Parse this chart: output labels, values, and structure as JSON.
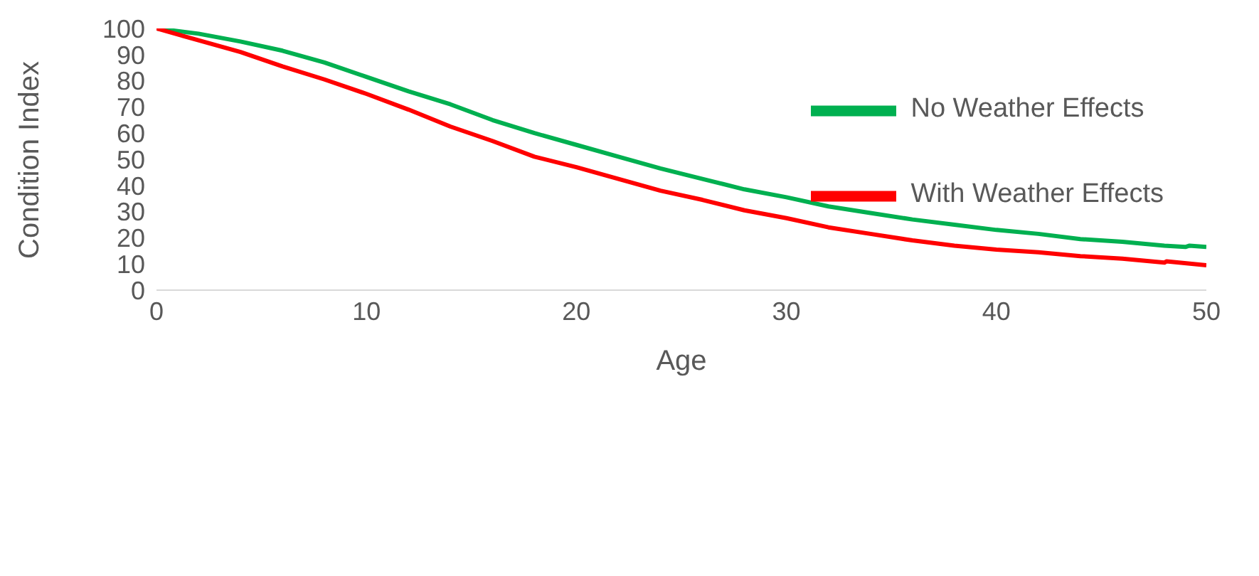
{
  "chart_data": {
    "type": "line",
    "xlabel": "Age",
    "ylabel": "Condition Index",
    "xlim": [
      0,
      50
    ],
    "xticks": [
      0,
      10,
      20,
      30,
      40,
      50
    ],
    "ylim": [
      0,
      100
    ],
    "yticks": [
      0,
      10,
      20,
      30,
      40,
      50,
      60,
      70,
      80,
      90,
      100
    ],
    "grid": false,
    "legend": "top right",
    "marker": "none",
    "line_style": "solid",
    "series": [
      {
        "name": "No Weather Effects",
        "color": "#00b050",
        "x": [
          0,
          2,
          4,
          6,
          8,
          10,
          12,
          14,
          16,
          18,
          20,
          22,
          24,
          26,
          28,
          30,
          32,
          34,
          36,
          38,
          40,
          42,
          44,
          46,
          48,
          49,
          49.2,
          50
        ],
        "values": [
          100,
          98,
          95,
          91.5,
          87,
          81.5,
          76,
          71,
          65,
          60,
          55.5,
          51,
          46.5,
          42.5,
          38.5,
          35.5,
          32,
          29.5,
          27,
          25,
          23,
          21.5,
          19.5,
          18.5,
          17,
          16.5,
          17,
          16.5
        ]
      },
      {
        "name": "With Weather Effects",
        "color": "#ff0000",
        "x": [
          0,
          2,
          4,
          6,
          8,
          10,
          12,
          14,
          16,
          18,
          20,
          22,
          24,
          26,
          28,
          30,
          32,
          34,
          36,
          38,
          40,
          42,
          44,
          46,
          48,
          48.1,
          50
        ],
        "values": [
          100,
          95.5,
          91,
          85.5,
          80.5,
          75,
          69,
          62.5,
          57,
          51,
          47,
          42.5,
          38,
          34.5,
          30.5,
          27.5,
          24,
          21.5,
          19,
          17,
          15.5,
          14.5,
          13,
          12,
          10.5,
          11,
          9.5
        ]
      }
    ]
  }
}
